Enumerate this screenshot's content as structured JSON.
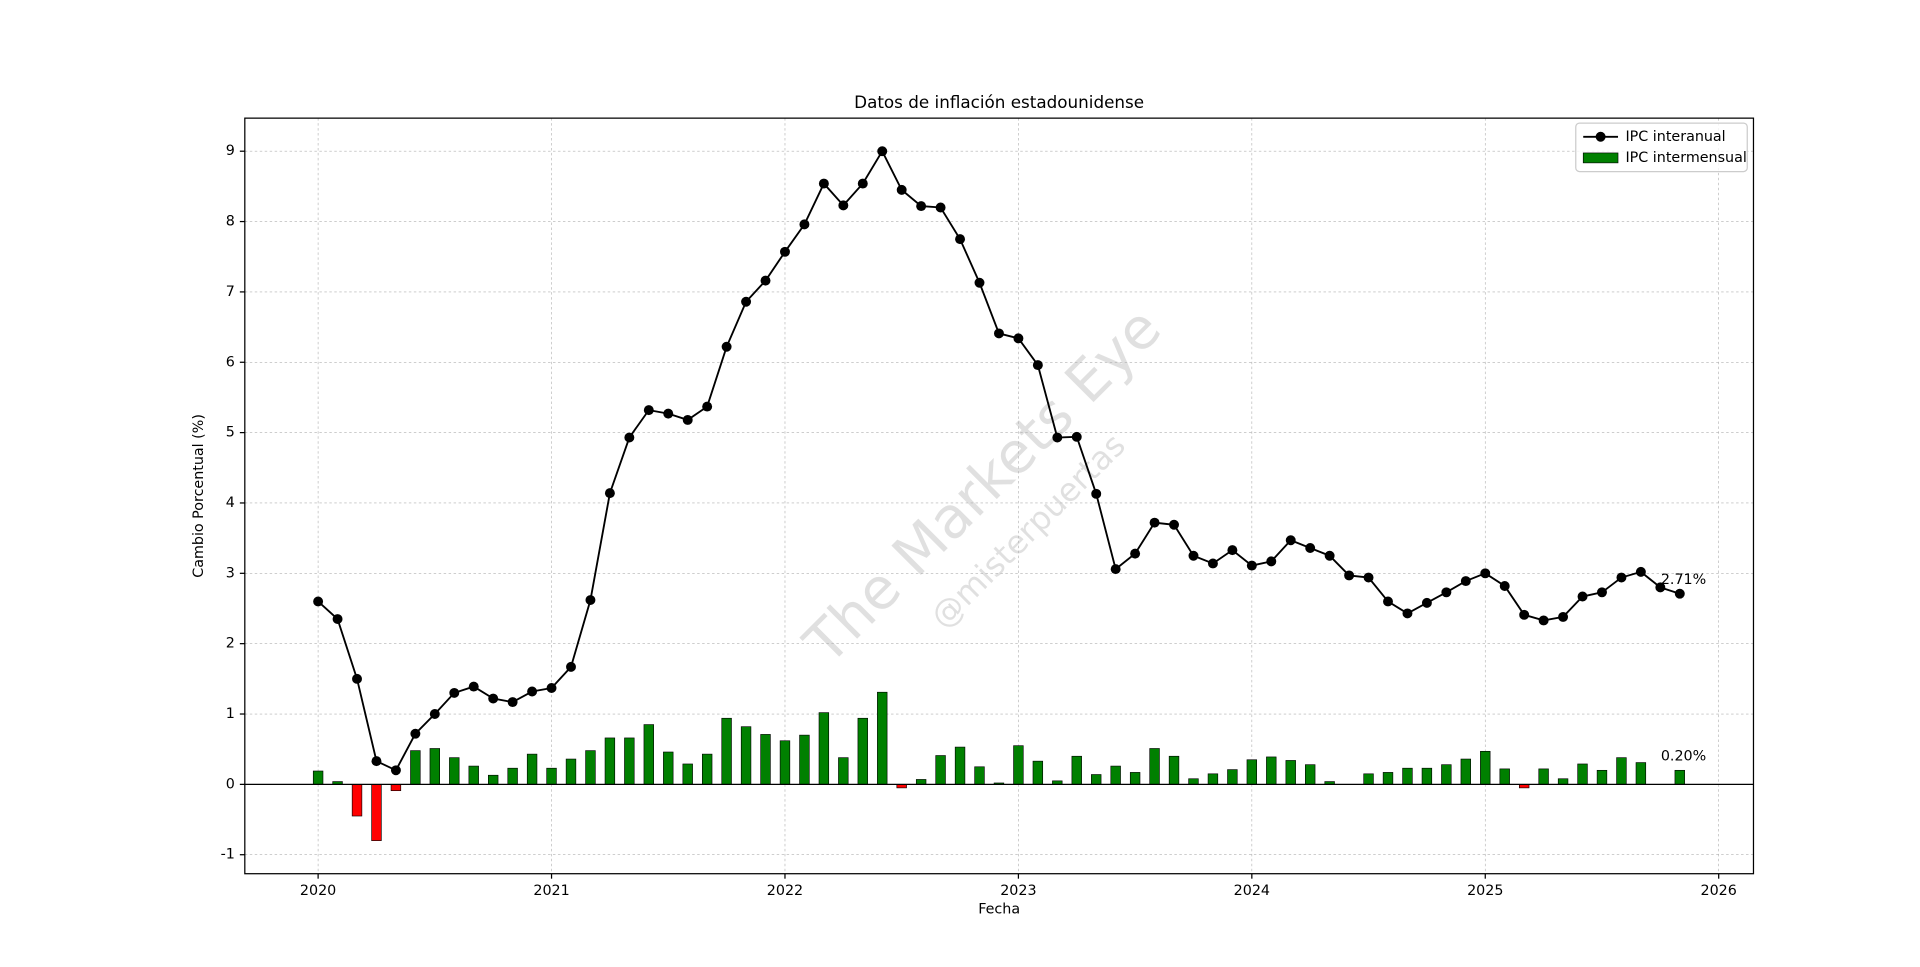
{
  "chart_data": {
    "type": "line_bar",
    "title": "Datos de inflación estadounidense",
    "xlabel": "Fecha",
    "ylabel": "Cambio Porcentual (%)",
    "watermark": "The Markets Eye",
    "watermark_sub": "@misterpuertas",
    "x": [
      "2020-01",
      "2020-02",
      "2020-03",
      "2020-04",
      "2020-05",
      "2020-06",
      "2020-07",
      "2020-08",
      "2020-09",
      "2020-10",
      "2020-11",
      "2020-12",
      "2021-01",
      "2021-02",
      "2021-03",
      "2021-04",
      "2021-05",
      "2021-06",
      "2021-07",
      "2021-08",
      "2021-09",
      "2021-10",
      "2021-11",
      "2021-12",
      "2022-01",
      "2022-02",
      "2022-03",
      "2022-04",
      "2022-05",
      "2022-06",
      "2022-07",
      "2022-08",
      "2022-09",
      "2022-10",
      "2022-11",
      "2022-12",
      "2023-01",
      "2023-02",
      "2023-03",
      "2023-04",
      "2023-05",
      "2023-06",
      "2023-07",
      "2023-08",
      "2023-09",
      "2023-10",
      "2023-11",
      "2023-12",
      "2024-01",
      "2024-02",
      "2024-03",
      "2024-04",
      "2024-05",
      "2024-06",
      "2024-07",
      "2024-08",
      "2024-09",
      "2024-10",
      "2024-11",
      "2024-12",
      "2025-01",
      "2025-02",
      "2025-03",
      "2025-04",
      "2025-05",
      "2025-06",
      "2025-07",
      "2025-08",
      "2025-09",
      "2025-10",
      "2025-11"
    ],
    "series": [
      {
        "name": "IPC interanual",
        "kind": "line",
        "color": "#000000",
        "values": [
          2.6,
          2.35,
          1.5,
          0.33,
          0.2,
          0.72,
          1.0,
          1.3,
          1.39,
          1.22,
          1.17,
          1.32,
          1.37,
          1.67,
          2.62,
          4.14,
          4.93,
          5.32,
          5.27,
          5.18,
          5.37,
          6.22,
          6.86,
          7.16,
          7.57,
          7.96,
          8.54,
          8.23,
          8.54,
          9.0,
          8.45,
          8.22,
          8.2,
          7.75,
          7.13,
          6.41,
          6.34,
          5.96,
          4.93,
          4.94,
          4.13,
          3.06,
          3.28,
          3.72,
          3.69,
          3.25,
          3.14,
          3.33,
          3.11,
          3.17,
          3.47,
          3.36,
          3.25,
          2.97,
          2.94,
          2.6,
          2.43,
          2.58,
          2.73,
          2.89,
          3.0,
          2.82,
          2.41,
          2.33,
          2.38,
          2.67,
          2.73,
          2.94,
          3.02,
          2.8,
          2.71
        ],
        "value_labels": [
          null,
          null,
          null,
          null,
          null,
          null,
          null,
          null,
          null,
          null,
          null,
          null,
          null,
          null,
          null,
          null,
          null,
          null,
          null,
          null,
          null,
          null,
          null,
          null,
          null,
          null,
          null,
          null,
          null,
          null,
          null,
          null,
          null,
          null,
          null,
          null,
          null,
          null,
          null,
          null,
          null,
          null,
          null,
          null,
          null,
          null,
          null,
          null,
          null,
          null,
          null,
          null,
          null,
          null,
          null,
          null,
          null,
          null,
          null,
          null,
          null,
          null,
          null,
          null,
          null,
          null,
          null,
          null,
          null,
          null,
          "2.71%"
        ]
      },
      {
        "name": "IPC intermensual",
        "kind": "bar",
        "color": "#008000",
        "negative_color": "#ff0000",
        "values": [
          0.19,
          0.04,
          -0.45,
          -0.8,
          -0.09,
          0.48,
          0.51,
          0.38,
          0.26,
          0.13,
          0.23,
          0.43,
          0.23,
          0.36,
          0.48,
          0.66,
          0.66,
          0.85,
          0.46,
          0.29,
          0.43,
          0.94,
          0.82,
          0.71,
          0.62,
          0.7,
          1.02,
          0.38,
          0.94,
          1.31,
          -0.05,
          0.07,
          0.41,
          0.53,
          0.25,
          0.02,
          0.55,
          0.33,
          0.05,
          0.4,
          0.14,
          0.26,
          0.17,
          0.51,
          0.4,
          0.08,
          0.15,
          0.21,
          0.35,
          0.39,
          0.34,
          0.28,
          0.04,
          0,
          0.15,
          0.17,
          0.23,
          0.23,
          0.28,
          0.36,
          0.47,
          0.22,
          -0.05,
          0.22,
          0.08,
          0.29,
          0.2,
          0.38,
          0.31,
          null,
          0.2
        ],
        "value_labels": [
          null,
          null,
          null,
          null,
          null,
          null,
          null,
          null,
          null,
          null,
          null,
          null,
          null,
          null,
          null,
          null,
          null,
          null,
          null,
          null,
          null,
          null,
          null,
          null,
          null,
          null,
          null,
          null,
          null,
          null,
          null,
          null,
          null,
          null,
          null,
          null,
          null,
          null,
          null,
          null,
          null,
          null,
          null,
          null,
          null,
          null,
          null,
          null,
          null,
          null,
          null,
          null,
          null,
          null,
          null,
          null,
          null,
          null,
          null,
          null,
          null,
          null,
          null,
          null,
          null,
          null,
          null,
          null,
          null,
          null,
          "0.20%"
        ]
      }
    ],
    "xlim": [
      2019.686,
      2026.149
    ],
    "xticks": [
      2020,
      2021,
      2022,
      2023,
      2024,
      2025,
      2026
    ],
    "ylim": [
      -1.27,
      9.47
    ],
    "yticks": [
      -1,
      0,
      1,
      2,
      3,
      4,
      5,
      6,
      7,
      8,
      9
    ],
    "grid": true,
    "legend": "upper right"
  }
}
